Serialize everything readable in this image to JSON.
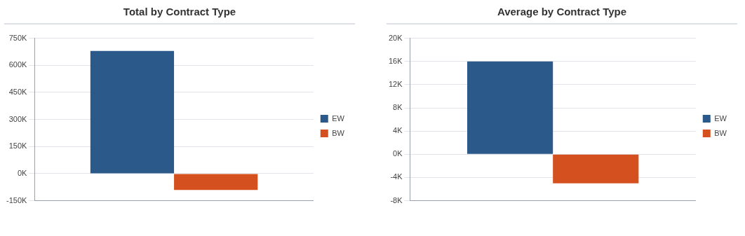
{
  "chart_data": [
    {
      "type": "bar",
      "title": "Total by Contract Type",
      "categories": [
        null
      ],
      "series": [
        {
          "name": "EW",
          "color": "#2b5a8a",
          "values": [
            680000
          ]
        },
        {
          "name": "BW",
          "color": "#d4501f",
          "values": [
            -90000
          ]
        }
      ],
      "ylim": [
        -150000,
        750000
      ],
      "yticks": [
        {
          "value": -150000,
          "label": "-150K"
        },
        {
          "value": 0,
          "label": "0K"
        },
        {
          "value": 150000,
          "label": "150K"
        },
        {
          "value": 300000,
          "label": "300K"
        },
        {
          "value": 450000,
          "label": "450K"
        },
        {
          "value": 600000,
          "label": "600K"
        },
        {
          "value": 750000,
          "label": "750K"
        }
      ],
      "grid": "y",
      "legend": "right"
    },
    {
      "type": "bar",
      "title": "Average by Contract Type",
      "categories": [
        null
      ],
      "series": [
        {
          "name": "EW",
          "color": "#2b5a8a",
          "values": [
            16000
          ]
        },
        {
          "name": "BW",
          "color": "#d4501f",
          "values": [
            -5000
          ]
        }
      ],
      "ylim": [
        -8000,
        20000
      ],
      "yticks": [
        {
          "value": -8000,
          "label": "-8K"
        },
        {
          "value": -4000,
          "label": "-4K"
        },
        {
          "value": 0,
          "label": "0K"
        },
        {
          "value": 4000,
          "label": "4K"
        },
        {
          "value": 8000,
          "label": "8K"
        },
        {
          "value": 12000,
          "label": "12K"
        },
        {
          "value": 16000,
          "label": "16K"
        },
        {
          "value": 20000,
          "label": "20K"
        }
      ],
      "grid": "y",
      "legend": "right"
    }
  ]
}
